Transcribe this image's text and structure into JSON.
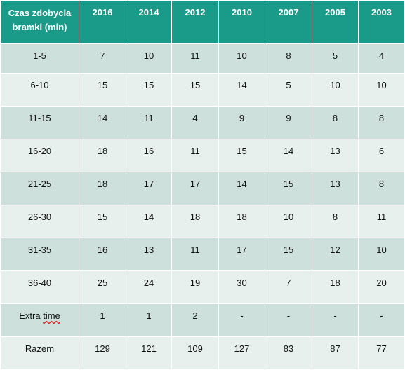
{
  "chart_data": {
    "type": "table",
    "header": [
      "Czas zdobycia bramki (min)",
      "2016",
      "2014",
      "2012",
      "2010",
      "2007",
      "2005",
      "2003"
    ],
    "rows": [
      [
        "1-5",
        "7",
        "10",
        "11",
        "10",
        "8",
        "5",
        "4"
      ],
      [
        "6-10",
        "15",
        "15",
        "15",
        "14",
        "5",
        "10",
        "10"
      ],
      [
        "11-15",
        "14",
        "11",
        "4",
        "9",
        "9",
        "8",
        "8"
      ],
      [
        "16-20",
        "18",
        "16",
        "11",
        "15",
        "14",
        "13",
        "6"
      ],
      [
        "21-25",
        "18",
        "17",
        "17",
        "14",
        "15",
        "13",
        "8"
      ],
      [
        "26-30",
        "15",
        "14",
        "18",
        "18",
        "10",
        "8",
        "11"
      ],
      [
        "31-35",
        "16",
        "13",
        "11",
        "17",
        "15",
        "12",
        "10"
      ],
      [
        "36-40",
        "25",
        "24",
        "19",
        "30",
        "7",
        "18",
        "20"
      ],
      [
        "Extra time",
        "1",
        "1",
        "2",
        "-",
        "-",
        "-",
        "-"
      ],
      [
        "Razem",
        "129",
        "121",
        "109",
        "127",
        "83",
        "87",
        "77"
      ]
    ]
  },
  "colors": {
    "header_bg": "#1a9b8a",
    "row_odd": "#cee0dc",
    "row_even": "#e8f0ee"
  }
}
